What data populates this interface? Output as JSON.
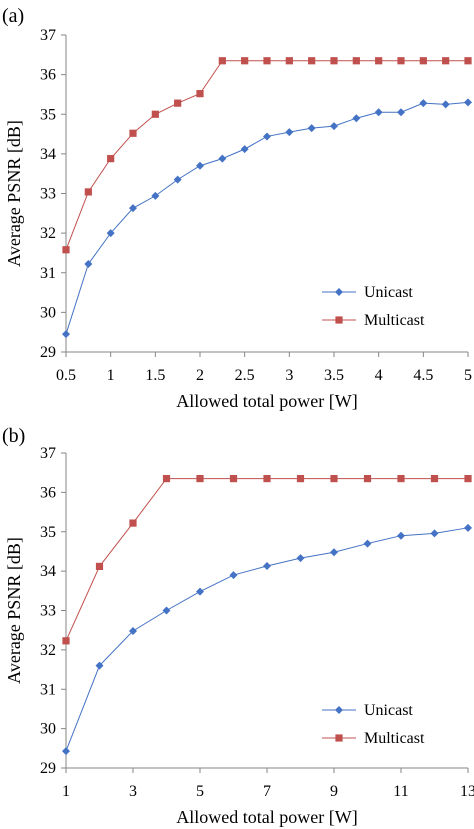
{
  "colors": {
    "unicast": "#4472C4",
    "multicast": "#C0504D",
    "axis": "#868686"
  },
  "chart_data": [
    {
      "panel": "(a)",
      "type": "line",
      "xlabel": "Allowed total power [W]",
      "ylabel": "Average PSNR [dB]",
      "xlim": [
        0.5,
        5
      ],
      "ylim": [
        29,
        37
      ],
      "xticks": [
        0.5,
        1,
        1.5,
        2,
        2.5,
        3,
        3.5,
        4,
        4.5,
        5
      ],
      "xtick_labels": [
        "0.5",
        "1",
        "1.5",
        "2",
        "2.5",
        "3",
        "3.5",
        "4",
        "4.5",
        "5"
      ],
      "yticks": [
        29,
        30,
        31,
        32,
        33,
        34,
        35,
        36,
        37
      ],
      "legend": "lower-right",
      "grid": false,
      "x": [
        0.5,
        0.75,
        1,
        1.25,
        1.5,
        1.75,
        2,
        2.25,
        2.5,
        2.75,
        3,
        3.25,
        3.5,
        3.75,
        4,
        4.25,
        4.5,
        4.75,
        5
      ],
      "series": [
        {
          "name": "Unicast",
          "marker": "diamond",
          "values": [
            29.45,
            31.22,
            32.0,
            32.63,
            32.94,
            33.35,
            33.7,
            33.88,
            34.12,
            34.44,
            34.55,
            34.65,
            34.7,
            34.9,
            35.05,
            35.05,
            35.28,
            35.25,
            35.3
          ]
        },
        {
          "name": "Multicast",
          "marker": "square",
          "values": [
            31.58,
            33.04,
            33.88,
            34.52,
            35.0,
            35.28,
            35.52,
            36.35,
            36.35,
            36.35,
            36.35,
            36.35,
            36.35,
            36.35,
            36.35,
            36.35,
            36.35,
            36.35,
            36.35
          ]
        }
      ]
    },
    {
      "panel": "(b)",
      "type": "line",
      "xlabel": "Allowed total power [W]",
      "ylabel": "Average PSNR [dB]",
      "xlim": [
        1,
        13
      ],
      "ylim": [
        29,
        37
      ],
      "xticks": [
        1,
        3,
        5,
        7,
        9,
        11,
        13
      ],
      "xtick_labels": [
        "1",
        "3",
        "5",
        "7",
        "9",
        "11",
        "13"
      ],
      "yticks": [
        29,
        30,
        31,
        32,
        33,
        34,
        35,
        36,
        37
      ],
      "legend": "lower-right",
      "grid": false,
      "x": [
        1,
        2,
        3,
        4,
        5,
        6,
        7,
        8,
        9,
        10,
        11,
        12,
        13
      ],
      "series": [
        {
          "name": "Unicast",
          "marker": "diamond",
          "values": [
            29.43,
            31.6,
            32.48,
            33.0,
            33.48,
            33.9,
            34.13,
            34.33,
            34.48,
            34.7,
            34.9,
            34.96,
            35.1
          ]
        },
        {
          "name": "Multicast",
          "marker": "square",
          "values": [
            32.23,
            34.12,
            35.22,
            36.35,
            36.35,
            36.35,
            36.35,
            36.35,
            36.35,
            36.35,
            36.35,
            36.35,
            36.35
          ]
        }
      ]
    }
  ]
}
